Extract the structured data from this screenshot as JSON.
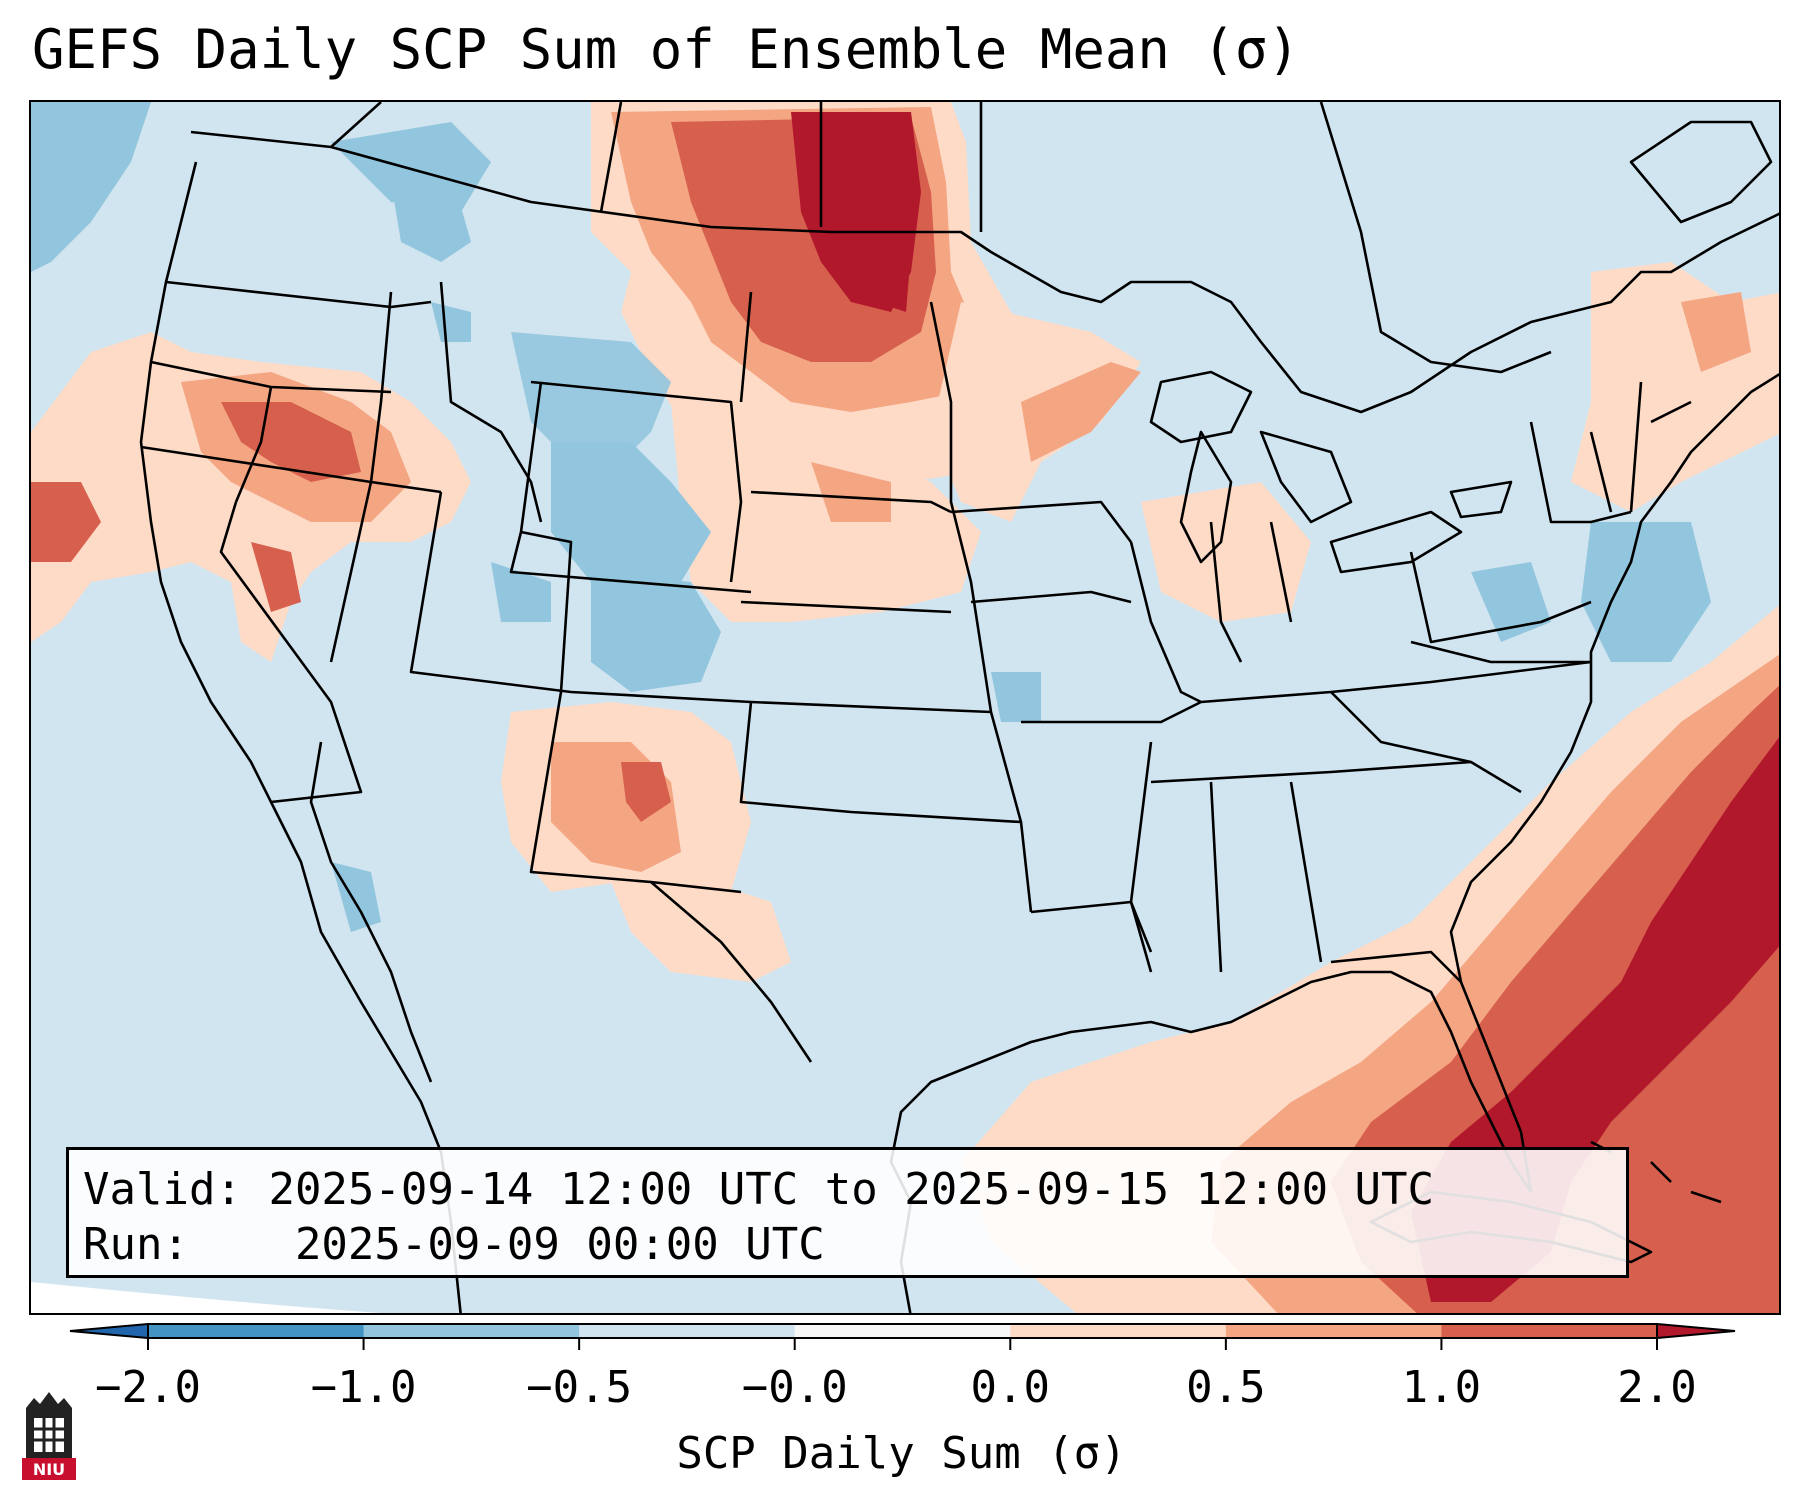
{
  "title": "GEFS Daily SCP Sum of Ensemble Mean (σ)",
  "info": {
    "valid_label": "Valid:",
    "valid_value": "2025-09-14 12:00 UTC to 2025-09-15 12:00 UTC",
    "run_label": "Run:",
    "run_value": "2025-09-09 00:00 UTC"
  },
  "colorbar": {
    "label": "SCP Daily Sum (σ)",
    "ticks": [
      "−2.0",
      "−1.0",
      "−0.5",
      "−0.0",
      "0.0",
      "0.5",
      "1.0",
      "2.0"
    ],
    "bins": [
      {
        "range": "< -2.0",
        "color": "#2166ac"
      },
      {
        "range": "-2.0 to -1.0",
        "color": "#4393c3"
      },
      {
        "range": "-1.0 to -0.5",
        "color": "#92c5de"
      },
      {
        "range": "-0.5 to -0.0",
        "color": "#d1e5f0"
      },
      {
        "range": "-0.0 to 0.0",
        "color": "#f7f7f7"
      },
      {
        "range": "0.0 to 0.5",
        "color": "#fddbc7"
      },
      {
        "range": "0.5 to 1.0",
        "color": "#f4a582"
      },
      {
        "range": "1.0 to 2.0",
        "color": "#d6604d"
      },
      {
        "range": "> 2.0",
        "color": "#b2182b"
      }
    ]
  },
  "logo": {
    "text": "NIU",
    "color": "#c8102e"
  },
  "map": {
    "background_color": "#d1e5f0",
    "regions": [
      {
        "name": "northern-plains-dakotas",
        "level": "1.0 to 2.0",
        "color": "#d6604d"
      },
      {
        "name": "north-dakota-core",
        "level": "> 2.0",
        "color": "#b2182b"
      },
      {
        "name": "pacific-northwest",
        "level": "0.5 to 1.0",
        "color": "#f4a582"
      },
      {
        "name": "atlantic-florida-plume",
        "level": "> 2.0",
        "color": "#b2182b"
      },
      {
        "name": "new-mexico",
        "level": "0.5 to 1.0",
        "color": "#f4a582"
      },
      {
        "name": "colorado-wyoming",
        "level": "-1.0 to -0.5",
        "color": "#92c5de"
      }
    ]
  }
}
